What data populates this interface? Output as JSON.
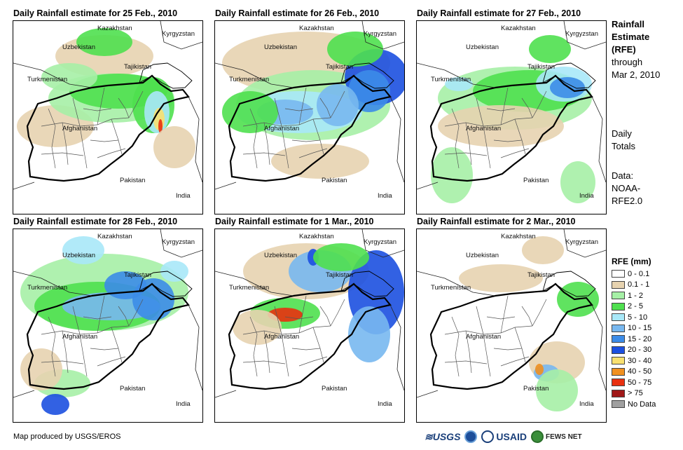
{
  "panels": [
    {
      "title": "Daily Rainfall estimate for 25 Feb., 2010"
    },
    {
      "title": "Daily Rainfall estimate for 26 Feb., 2010"
    },
    {
      "title": "Daily Rainfall estimate for 27 Feb., 2010"
    },
    {
      "title": "Daily Rainfall estimate for 28 Feb., 2010"
    },
    {
      "title": "Daily Rainfall estimate for 1 Mar., 2010"
    },
    {
      "title": "Daily Rainfall estimate for 2 Mar., 2010"
    }
  ],
  "country_labels": {
    "kazakhstan": "Kazakhstan",
    "kyrgyzstan": "Kyrgyzstan",
    "uzbekistan": "Uzbekistan",
    "tajikistan": "Tajikistan",
    "turkmenistan": "Turkmenistan",
    "afghanistan": "Afghanistan",
    "pakistan": "Pakistan",
    "india": "India"
  },
  "side": {
    "title_line1": "Rainfall",
    "title_line2": "Estimate",
    "title_line3": "(RFE)",
    "through": "through",
    "date": "Mar 2, 2010",
    "daily": "Daily",
    "totals": "Totals",
    "data_label": "Data:",
    "source1": "NOAA-",
    "source2": "RFE2.0"
  },
  "legend": {
    "title": "RFE (mm)",
    "items": [
      {
        "label": "0 - 0.1",
        "color": "#ffffff"
      },
      {
        "label": "0.1 - 1",
        "color": "#e7d3b0"
      },
      {
        "label": "1 - 2",
        "color": "#a6f0a6"
      },
      {
        "label": "2 - 5",
        "color": "#4fe04f"
      },
      {
        "label": "5 - 10",
        "color": "#a8e8f8"
      },
      {
        "label": "10 - 15",
        "color": "#78b8f0"
      },
      {
        "label": "15 - 20",
        "color": "#3c8ce8"
      },
      {
        "label": "20 - 30",
        "color": "#1c50e0"
      },
      {
        "label": "30 - 40",
        "color": "#f8e070"
      },
      {
        "label": "40 - 50",
        "color": "#f09020"
      },
      {
        "label": "50 - 75",
        "color": "#e83010"
      },
      {
        "label": "> 75",
        "color": "#a01818"
      },
      {
        "label": "No Data",
        "color": "#a0a0a0"
      }
    ]
  },
  "credit": "Map produced by USGS/EROS",
  "logos": {
    "usgs": "≋USGS",
    "usaid": "USAID",
    "fews": "FEWS NET"
  }
}
